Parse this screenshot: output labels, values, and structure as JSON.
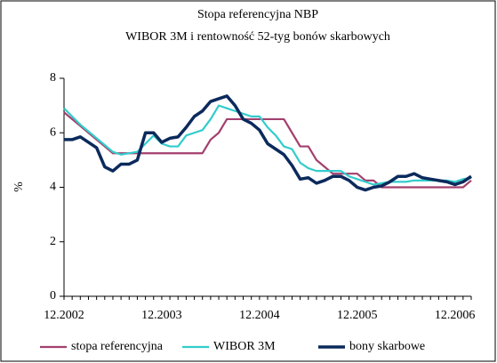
{
  "chart_data": {
    "type": "line",
    "title": "Stopa referencyjna NBP",
    "subtitle": "WIBOR 3M i rentowność 52-tyg bonów skarbowych",
    "ylabel": "%",
    "categories": [
      "12.2002",
      null,
      null,
      null,
      null,
      null,
      null,
      null,
      null,
      null,
      null,
      null,
      "12.2003",
      null,
      null,
      null,
      null,
      null,
      null,
      null,
      null,
      null,
      null,
      null,
      "12.2004",
      null,
      null,
      null,
      null,
      null,
      null,
      null,
      null,
      null,
      null,
      null,
      "12.2005",
      null,
      null,
      null,
      null,
      null,
      null,
      null,
      null,
      null,
      null,
      null,
      "12.2006",
      null,
      null
    ],
    "series": [
      {
        "name": "stopa referencyjna",
        "color": "#a3406e",
        "values": [
          6.75,
          6.5,
          6.25,
          6.0,
          5.75,
          5.5,
          5.25,
          5.25,
          5.25,
          5.25,
          5.25,
          5.25,
          5.25,
          5.25,
          5.25,
          5.25,
          5.25,
          5.25,
          5.75,
          6.0,
          6.5,
          6.5,
          6.5,
          6.5,
          6.5,
          6.5,
          6.5,
          6.5,
          6.0,
          5.5,
          5.5,
          5.0,
          4.75,
          4.5,
          4.5,
          4.5,
          4.5,
          4.25,
          4.25,
          4.0,
          4.0,
          4.0,
          4.0,
          4.0,
          4.0,
          4.0,
          4.0,
          4.0,
          4.0,
          4.0,
          4.25
        ]
      },
      {
        "name": "WIBOR 3M",
        "color": "#33cccc",
        "values": [
          6.9,
          6.6,
          6.3,
          6.05,
          5.8,
          5.55,
          5.3,
          5.2,
          5.25,
          5.3,
          5.6,
          5.9,
          5.6,
          5.5,
          5.5,
          5.9,
          6.0,
          6.1,
          6.5,
          7.0,
          6.9,
          6.8,
          6.7,
          6.6,
          6.6,
          6.2,
          5.9,
          5.5,
          5.4,
          4.9,
          4.7,
          4.6,
          4.6,
          4.6,
          4.6,
          4.4,
          4.3,
          4.2,
          4.1,
          4.15,
          4.2,
          4.2,
          4.2,
          4.25,
          4.25,
          4.25,
          4.25,
          4.25,
          4.2,
          4.3,
          4.35
        ]
      },
      {
        "name": "bony skarbowe",
        "color": "#0b2a5c",
        "values": [
          5.75,
          5.75,
          5.85,
          5.65,
          5.45,
          4.75,
          4.6,
          4.85,
          4.85,
          5.0,
          6.0,
          6.0,
          5.65,
          5.8,
          5.85,
          6.2,
          6.6,
          6.8,
          7.15,
          7.25,
          7.35,
          7.0,
          6.5,
          6.35,
          6.1,
          5.6,
          5.4,
          5.2,
          4.8,
          4.3,
          4.35,
          4.15,
          4.25,
          4.4,
          4.4,
          4.25,
          4.0,
          3.9,
          4.0,
          4.05,
          4.2,
          4.4,
          4.4,
          4.5,
          4.35,
          4.3,
          4.25,
          4.2,
          4.1,
          4.2,
          4.4
        ]
      }
    ],
    "ylim": [
      0,
      8
    ],
    "yticks": [
      0,
      2,
      4,
      6,
      8
    ],
    "legend": "bottom"
  }
}
